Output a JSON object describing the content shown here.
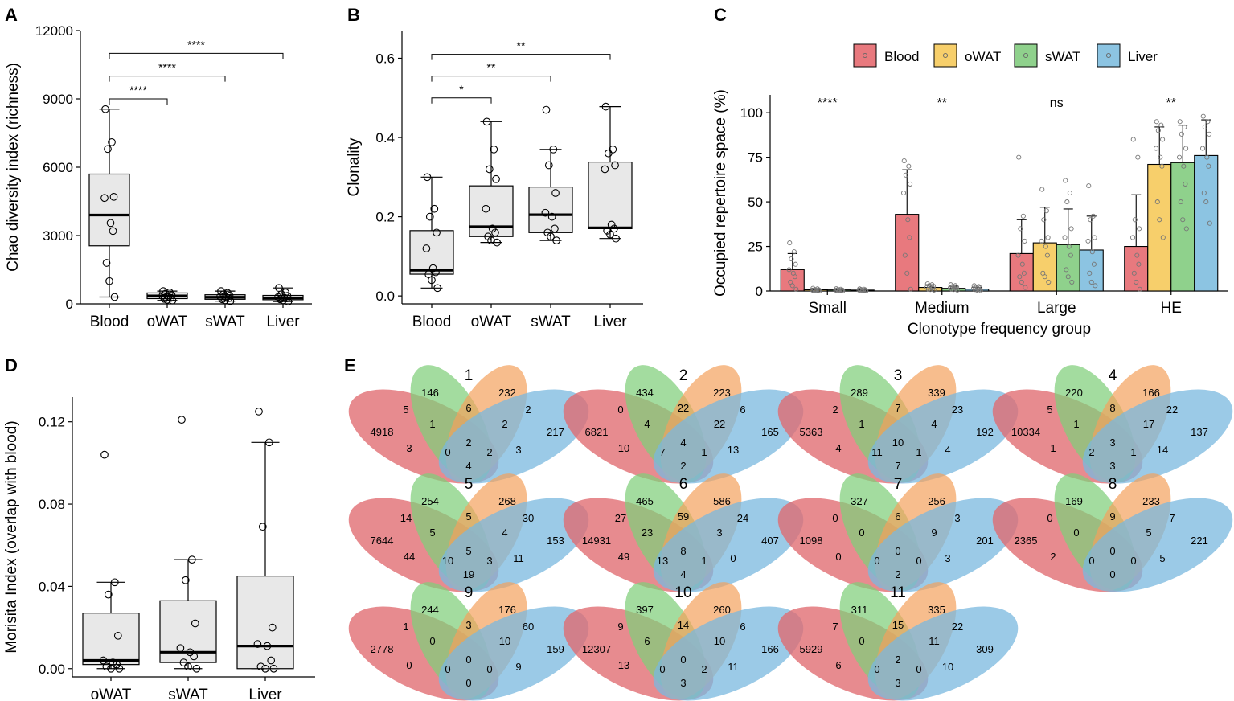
{
  "chart_data": [
    {
      "panel": "A",
      "type": "boxplot",
      "ylabel": "Chao diversity index (richness)",
      "categories": [
        "Blood",
        "oWAT",
        "sWAT",
        "Liver"
      ],
      "ylim": [
        0,
        12000
      ],
      "yticks": [
        0,
        3000,
        6000,
        9000,
        12000
      ],
      "yticklabels": [
        "0",
        "3000",
        "6000",
        "9000",
        "12000"
      ],
      "boxes": [
        {
          "whislo": 300,
          "q1": 2550,
          "med": 3900,
          "q3": 5700,
          "whishi": 8550
        },
        {
          "whislo": 150,
          "q1": 230,
          "med": 350,
          "q3": 480,
          "whishi": 560
        },
        {
          "whislo": 120,
          "q1": 200,
          "med": 290,
          "q3": 400,
          "whishi": 560
        },
        {
          "whislo": 100,
          "q1": 180,
          "med": 260,
          "q3": 370,
          "whishi": 700
        }
      ],
      "points": [
        [
          8550,
          7100,
          6800,
          4700,
          4650,
          3550,
          3200,
          1800,
          1000,
          300
        ],
        [
          560,
          500,
          450,
          380,
          350,
          300,
          260,
          220,
          180,
          150
        ],
        [
          560,
          480,
          420,
          360,
          320,
          290,
          250,
          200,
          160,
          120
        ],
        [
          700,
          500,
          420,
          350,
          300,
          270,
          240,
          200,
          160,
          100
        ]
      ],
      "significance": [
        {
          "from": 0,
          "to": 1,
          "y": 9000,
          "label": "****"
        },
        {
          "from": 0,
          "to": 2,
          "y": 10000,
          "label": "****"
        },
        {
          "from": 0,
          "to": 3,
          "y": 11000,
          "label": "****"
        }
      ]
    },
    {
      "panel": "B",
      "type": "boxplot",
      "ylabel": "Clonality",
      "categories": [
        "Blood",
        "oWAT",
        "sWAT",
        "Liver"
      ],
      "ylim": [
        -0.02,
        0.67
      ],
      "yticks": [
        0.0,
        0.2,
        0.4,
        0.6
      ],
      "yticklabels": [
        "0.0",
        "0.2",
        "0.4",
        "0.6"
      ],
      "boxes": [
        {
          "whislo": 0.02,
          "q1": 0.055,
          "med": 0.065,
          "q3": 0.165,
          "whishi": 0.3
        },
        {
          "whislo": 0.135,
          "q1": 0.15,
          "med": 0.175,
          "q3": 0.278,
          "whishi": 0.44
        },
        {
          "whislo": 0.14,
          "q1": 0.16,
          "med": 0.205,
          "q3": 0.275,
          "whishi": 0.37
        },
        {
          "whislo": 0.145,
          "q1": 0.17,
          "med": 0.172,
          "q3": 0.338,
          "whishi": 0.478
        }
      ],
      "points": [
        [
          0.3,
          0.22,
          0.2,
          0.16,
          0.12,
          0.07,
          0.06,
          0.055,
          0.04,
          0.02
        ],
        [
          0.44,
          0.37,
          0.32,
          0.295,
          0.22,
          0.17,
          0.16,
          0.15,
          0.14,
          0.135
        ],
        [
          0.47,
          0.37,
          0.33,
          0.26,
          0.21,
          0.2,
          0.17,
          0.16,
          0.15,
          0.14
        ],
        [
          0.478,
          0.37,
          0.36,
          0.33,
          0.32,
          0.18,
          0.17,
          0.165,
          0.155,
          0.145
        ]
      ],
      "significance": [
        {
          "from": 0,
          "to": 1,
          "y": 0.5,
          "label": "*"
        },
        {
          "from": 0,
          "to": 2,
          "y": 0.555,
          "label": "**"
        },
        {
          "from": 0,
          "to": 3,
          "y": 0.61,
          "label": "**"
        }
      ]
    },
    {
      "panel": "C",
      "type": "bar",
      "ylabel": "Occupied repertoire space (%)",
      "xlabel": "Clonotype frequency group",
      "categories": [
        "Small",
        "Medium",
        "Large",
        "HE"
      ],
      "ylim": [
        0,
        110
      ],
      "yticks": [
        0,
        25,
        50,
        75,
        100
      ],
      "yticklabels": [
        "0",
        "25",
        "50",
        "75",
        "100"
      ],
      "legend": {
        "position": "top",
        "entries": [
          "Blood",
          "oWAT",
          "sWAT",
          "Liver"
        ]
      },
      "colors": [
        "#e8797e",
        "#f7cf6b",
        "#8fd18c",
        "#8cc4e2"
      ],
      "series": [
        {
          "name": "Blood",
          "values": [
            12,
            43,
            21,
            25
          ],
          "errors": [
            9,
            25,
            19,
            29
          ],
          "points": [
            [
              27,
              22,
              18,
              15,
              12,
              10,
              8,
              5,
              3,
              1
            ],
            [
              73,
              70,
              65,
              60,
              55,
              40,
              30,
              20,
              10,
              1
            ],
            [
              75,
              42,
              35,
              28,
              20,
              15,
              10,
              8,
              5,
              2
            ],
            [
              85,
              75,
              40,
              35,
              30,
              20,
              15,
              10,
              5,
              1
            ]
          ]
        },
        {
          "name": "oWAT",
          "values": [
            0.7,
            2,
            27,
            71
          ],
          "errors": [
            0.6,
            1.5,
            20,
            21
          ],
          "points": [
            [
              1.5,
              1.2,
              0.8,
              0.6,
              0.5,
              0.4,
              0.3,
              0.2,
              0.1,
              0.05
            ],
            [
              4,
              3.5,
              3,
              2.5,
              2,
              1.8,
              1.5,
              1,
              0.8,
              0.5
            ],
            [
              57,
              45,
              40,
              30,
              28,
              25,
              20,
              10,
              8,
              5
            ],
            [
              95,
              93,
              90,
              85,
              80,
              75,
              70,
              50,
              40,
              30
            ]
          ]
        },
        {
          "name": "sWAT",
          "values": [
            0.6,
            1.5,
            26,
            72
          ],
          "errors": [
            0.5,
            1.2,
            20,
            21
          ],
          "points": [
            [
              1.3,
              1,
              0.8,
              0.6,
              0.5,
              0.4,
              0.3,
              0.2,
              0.1,
              0.05
            ],
            [
              3.5,
              3,
              2.5,
              2,
              1.8,
              1.5,
              1.2,
              1,
              0.8,
              0.5
            ],
            [
              62,
              55,
              50,
              35,
              30,
              25,
              20,
              12,
              8,
              5
            ],
            [
              95,
              92,
              88,
              80,
              75,
              70,
              60,
              50,
              40,
              35
            ]
          ]
        },
        {
          "name": "Liver",
          "values": [
            0.5,
            1,
            23,
            76
          ],
          "errors": [
            0.4,
            1,
            19,
            20
          ],
          "points": [
            [
              1.2,
              1,
              0.8,
              0.6,
              0.5,
              0.4,
              0.3,
              0.2,
              0.1,
              0.05
            ],
            [
              3,
              2.5,
              2,
              1.8,
              1.5,
              1.2,
              1,
              0.8,
              0.5,
              0.3
            ],
            [
              59,
              42,
              40,
              30,
              28,
              22,
              15,
              10,
              5,
              3
            ],
            [
              98,
              95,
              92,
              88,
              80,
              75,
              70,
              55,
              50,
              38
            ]
          ]
        }
      ],
      "significance": [
        "****",
        "**",
        "ns",
        "**"
      ]
    },
    {
      "panel": "D",
      "type": "boxplot",
      "ylabel": "Morisita Index (overlap with blood)",
      "categories": [
        "oWAT",
        "sWAT",
        "Liver"
      ],
      "ylim": [
        -0.004,
        0.132
      ],
      "yticks": [
        0.0,
        0.04,
        0.08,
        0.12
      ],
      "yticklabels": [
        "0.00",
        "0.04",
        "0.08",
        "0.12"
      ],
      "boxes": [
        {
          "whislo": 0.0,
          "q1": 0.002,
          "med": 0.004,
          "q3": 0.027,
          "whishi": 0.042
        },
        {
          "whislo": 0.0,
          "q1": 0.003,
          "med": 0.008,
          "q3": 0.033,
          "whishi": 0.053
        },
        {
          "whislo": 0.0,
          "q1": 0.0,
          "med": 0.011,
          "q3": 0.045,
          "whishi": 0.11
        }
      ],
      "points": [
        [
          0.104,
          0.042,
          0.036,
          0.016,
          0.004,
          0.003,
          0.002,
          0.001,
          0.0,
          0.0
        ],
        [
          0.121,
          0.053,
          0.043,
          0.022,
          0.01,
          0.008,
          0.006,
          0.003,
          0.001,
          0.0
        ],
        [
          0.125,
          0.11,
          0.069,
          0.02,
          0.012,
          0.011,
          0.004,
          0.001,
          0.0,
          0.0
        ]
      ]
    },
    {
      "panel": "E",
      "type": "venn",
      "regions_order": [
        "blood_only",
        "owat_only",
        "swat_only",
        "liver_only",
        "blood_owat",
        "owat_swat",
        "swat_liver",
        "blood_owat_swat",
        "owat_swat_liver",
        "blood_swat",
        "owat_liver",
        "blood_owat_liver",
        "blood_swat_liver",
        "all_four",
        "blood_liver"
      ],
      "diagrams": [
        {
          "label": "1",
          "values": [
            "4918",
            "146",
            "232",
            "217",
            "5",
            "6",
            "2",
            "1",
            "2",
            "3",
            "3",
            "0",
            "2",
            "2",
            "4"
          ]
        },
        {
          "label": "2",
          "values": [
            "6821",
            "434",
            "223",
            "165",
            "0",
            "22",
            "6",
            "4",
            "22",
            "10",
            "13",
            "7",
            "1",
            "4",
            "2"
          ]
        },
        {
          "label": "3",
          "values": [
            "5363",
            "289",
            "339",
            "192",
            "2",
            "7",
            "23",
            "1",
            "4",
            "4",
            "4",
            "11",
            "1",
            "10",
            "7"
          ]
        },
        {
          "label": "4",
          "values": [
            "10334",
            "220",
            "166",
            "137",
            "5",
            "8",
            "22",
            "1",
            "17",
            "1",
            "14",
            "2",
            "1",
            "3",
            "3"
          ]
        },
        {
          "label": "5",
          "values": [
            "7644",
            "254",
            "268",
            "153",
            "14",
            "5",
            "30",
            "5",
            "4",
            "44",
            "11",
            "10",
            "3",
            "5",
            "19"
          ]
        },
        {
          "label": "6",
          "values": [
            "14931",
            "465",
            "586",
            "407",
            "27",
            "59",
            "24",
            "23",
            "3",
            "49",
            "0",
            "13",
            "1",
            "8",
            "4"
          ]
        },
        {
          "label": "7",
          "values": [
            "1098",
            "327",
            "256",
            "201",
            "0",
            "6",
            "3",
            "0",
            "9",
            "0",
            "3",
            "0",
            "0",
            "0",
            "2"
          ]
        },
        {
          "label": "8",
          "values": [
            "2365",
            "169",
            "233",
            "221",
            "0",
            "9",
            "7",
            "0",
            "5",
            "2",
            "5",
            "0",
            "0",
            "0",
            "0"
          ]
        },
        {
          "label": "9",
          "values": [
            "2778",
            "244",
            "176",
            "159",
            "1",
            "3",
            "60",
            "0",
            "10",
            "0",
            "9",
            "0",
            "0",
            "0",
            "0"
          ]
        },
        {
          "label": "10",
          "values": [
            "12307",
            "397",
            "260",
            "166",
            "9",
            "14",
            "6",
            "6",
            "10",
            "13",
            "11",
            "0",
            "2",
            "0",
            "3"
          ]
        },
        {
          "label": "11",
          "values": [
            "5929",
            "311",
            "335",
            "309",
            "7",
            "15",
            "22",
            "0",
            "11",
            "6",
            "10",
            "0",
            "0",
            "2",
            "3"
          ]
        }
      ]
    }
  ],
  "panel_letters": [
    "A",
    "B",
    "C",
    "D",
    "E"
  ],
  "colors": {
    "box_fill": "#e8e8e8",
    "blood": "#e8797e",
    "owat": "#f7cf6b",
    "swat": "#8fd18c",
    "liver": "#8cc4e2",
    "venn_red": "#e06a70",
    "venn_orange": "#f3a15d",
    "venn_green": "#7fcf7a",
    "venn_blue": "#7ab8df"
  }
}
